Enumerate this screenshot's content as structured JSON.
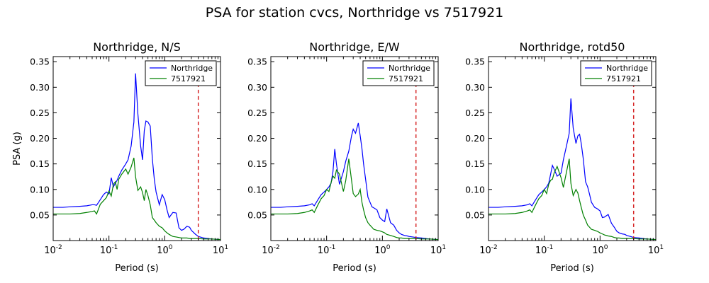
{
  "figure": {
    "suptitle": "PSA for station cvcs, Northridge vs 7517921"
  },
  "chart_data": [
    {
      "type": "line",
      "title": "Northridge, N/S",
      "xlabel": "Period (s)",
      "ylabel": "PSA (g)",
      "xscale": "log",
      "xlim": [
        0.01,
        10
      ],
      "ylim": [
        0.0,
        0.36
      ],
      "xticks": [
        "10^-2",
        "10^-1",
        "10^0",
        "10^1"
      ],
      "yticks": [
        "0.05",
        "0.10",
        "0.15",
        "0.20",
        "0.25",
        "0.30",
        "0.35"
      ],
      "legend_position": "top-right",
      "vline": {
        "x": 4.0,
        "color": "#d62728",
        "style": "dashed"
      },
      "series": [
        {
          "name": "Northridge",
          "color": "#0000ff",
          "x": [
            0.01,
            0.015,
            0.02,
            0.03,
            0.04,
            0.05,
            0.055,
            0.06,
            0.07,
            0.08,
            0.09,
            0.1,
            0.11,
            0.12,
            0.13,
            0.14,
            0.15,
            0.17,
            0.2,
            0.22,
            0.25,
            0.28,
            0.3,
            0.33,
            0.37,
            0.4,
            0.43,
            0.46,
            0.5,
            0.55,
            0.6,
            0.65,
            0.7,
            0.8,
            0.9,
            1.0,
            1.1,
            1.2,
            1.4,
            1.6,
            1.8,
            2.0,
            2.2,
            2.5,
            2.8,
            3.0,
            3.5,
            4.0,
            5.0,
            7.0,
            10.0
          ],
          "y": [
            0.065,
            0.065,
            0.066,
            0.067,
            0.068,
            0.07,
            0.07,
            0.069,
            0.08,
            0.09,
            0.095,
            0.091,
            0.123,
            0.105,
            0.112,
            0.118,
            0.126,
            0.138,
            0.15,
            0.158,
            0.185,
            0.232,
            0.327,
            0.248,
            0.185,
            0.158,
            0.215,
            0.234,
            0.232,
            0.224,
            0.16,
            0.12,
            0.095,
            0.07,
            0.09,
            0.08,
            0.06,
            0.045,
            0.055,
            0.054,
            0.025,
            0.02,
            0.022,
            0.028,
            0.026,
            0.02,
            0.013,
            0.008,
            0.005,
            0.003,
            0.002
          ]
        },
        {
          "name": "7517921",
          "color": "#008000",
          "x": [
            0.01,
            0.015,
            0.02,
            0.03,
            0.04,
            0.05,
            0.055,
            0.06,
            0.07,
            0.08,
            0.09,
            0.1,
            0.11,
            0.12,
            0.13,
            0.14,
            0.15,
            0.17,
            0.2,
            0.22,
            0.25,
            0.28,
            0.3,
            0.33,
            0.37,
            0.4,
            0.43,
            0.46,
            0.5,
            0.55,
            0.6,
            0.65,
            0.7,
            0.8,
            0.9,
            1.0,
            1.1,
            1.2,
            1.4,
            1.6,
            1.8,
            2.0,
            2.2,
            2.5,
            2.8,
            3.0,
            3.5,
            4.0,
            5.0,
            7.0,
            10.0
          ],
          "y": [
            0.052,
            0.052,
            0.052,
            0.053,
            0.055,
            0.057,
            0.058,
            0.052,
            0.071,
            0.078,
            0.084,
            0.097,
            0.087,
            0.11,
            0.115,
            0.1,
            0.12,
            0.13,
            0.14,
            0.13,
            0.144,
            0.162,
            0.125,
            0.098,
            0.105,
            0.094,
            0.078,
            0.1,
            0.088,
            0.07,
            0.045,
            0.04,
            0.035,
            0.028,
            0.025,
            0.019,
            0.015,
            0.012,
            0.008,
            0.007,
            0.006,
            0.005,
            0.005,
            0.005,
            0.004,
            0.004,
            0.004,
            0.004,
            0.003,
            0.003,
            0.002
          ]
        }
      ]
    },
    {
      "type": "line",
      "title": "Northridge, E/W",
      "xlabel": "Period (s)",
      "ylabel": "",
      "xscale": "log",
      "xlim": [
        0.01,
        10
      ],
      "ylim": [
        0.0,
        0.36
      ],
      "xticks": [
        "10^-2",
        "10^-1",
        "10^0",
        "10^1"
      ],
      "yticks": [
        "0.05",
        "0.10",
        "0.15",
        "0.20",
        "0.25",
        "0.30",
        "0.35"
      ],
      "legend_position": "top-right",
      "vline": {
        "x": 4.0,
        "color": "#d62728",
        "style": "dashed"
      },
      "series": [
        {
          "name": "Northridge",
          "color": "#0000ff",
          "x": [
            0.01,
            0.015,
            0.02,
            0.03,
            0.04,
            0.05,
            0.055,
            0.06,
            0.07,
            0.08,
            0.09,
            0.1,
            0.11,
            0.12,
            0.13,
            0.14,
            0.15,
            0.17,
            0.2,
            0.22,
            0.25,
            0.28,
            0.3,
            0.33,
            0.37,
            0.4,
            0.43,
            0.46,
            0.5,
            0.55,
            0.6,
            0.65,
            0.7,
            0.8,
            0.9,
            1.0,
            1.1,
            1.2,
            1.4,
            1.6,
            1.8,
            2.0,
            2.2,
            2.5,
            2.8,
            3.0,
            3.5,
            4.0,
            5.0,
            7.0,
            10.0
          ],
          "y": [
            0.065,
            0.065,
            0.066,
            0.067,
            0.068,
            0.07,
            0.072,
            0.068,
            0.08,
            0.09,
            0.095,
            0.1,
            0.105,
            0.112,
            0.135,
            0.179,
            0.15,
            0.11,
            0.135,
            0.155,
            0.175,
            0.205,
            0.218,
            0.21,
            0.23,
            0.205,
            0.18,
            0.15,
            0.12,
            0.085,
            0.075,
            0.066,
            0.064,
            0.06,
            0.045,
            0.04,
            0.037,
            0.062,
            0.035,
            0.03,
            0.02,
            0.015,
            0.012,
            0.01,
            0.009,
            0.008,
            0.007,
            0.006,
            0.005,
            0.003,
            0.002
          ]
        },
        {
          "name": "7517921",
          "color": "#008000",
          "x": [
            0.01,
            0.015,
            0.02,
            0.03,
            0.04,
            0.05,
            0.055,
            0.06,
            0.07,
            0.08,
            0.09,
            0.1,
            0.11,
            0.12,
            0.13,
            0.14,
            0.15,
            0.17,
            0.2,
            0.22,
            0.25,
            0.28,
            0.3,
            0.33,
            0.37,
            0.4,
            0.43,
            0.46,
            0.5,
            0.55,
            0.6,
            0.65,
            0.7,
            0.8,
            0.9,
            1.0,
            1.1,
            1.2,
            1.4,
            1.6,
            1.8,
            2.0,
            2.2,
            2.5,
            2.8,
            3.0,
            3.5,
            4.0,
            5.0,
            7.0,
            10.0
          ],
          "y": [
            0.052,
            0.052,
            0.052,
            0.053,
            0.055,
            0.058,
            0.06,
            0.055,
            0.07,
            0.082,
            0.088,
            0.1,
            0.096,
            0.113,
            0.126,
            0.122,
            0.138,
            0.13,
            0.096,
            0.117,
            0.16,
            0.118,
            0.092,
            0.086,
            0.091,
            0.1,
            0.075,
            0.06,
            0.045,
            0.035,
            0.03,
            0.026,
            0.022,
            0.02,
            0.019,
            0.017,
            0.015,
            0.012,
            0.01,
            0.008,
            0.006,
            0.005,
            0.005,
            0.004,
            0.004,
            0.004,
            0.004,
            0.004,
            0.003,
            0.003,
            0.002
          ]
        }
      ]
    },
    {
      "type": "line",
      "title": "Northridge, rotd50",
      "xlabel": "Period (s)",
      "ylabel": "",
      "xscale": "log",
      "xlim": [
        0.01,
        10
      ],
      "ylim": [
        0.0,
        0.36
      ],
      "xticks": [
        "10^-2",
        "10^-1",
        "10^0",
        "10^1"
      ],
      "yticks": [
        "0.05",
        "0.10",
        "0.15",
        "0.20",
        "0.25",
        "0.30",
        "0.35"
      ],
      "legend_position": "top-right",
      "vline": {
        "x": 4.0,
        "color": "#d62728",
        "style": "dashed"
      },
      "series": [
        {
          "name": "Northridge",
          "color": "#0000ff",
          "x": [
            0.01,
            0.015,
            0.02,
            0.03,
            0.04,
            0.05,
            0.055,
            0.06,
            0.07,
            0.08,
            0.09,
            0.1,
            0.11,
            0.12,
            0.13,
            0.14,
            0.15,
            0.17,
            0.2,
            0.22,
            0.25,
            0.28,
            0.3,
            0.33,
            0.37,
            0.4,
            0.43,
            0.46,
            0.5,
            0.55,
            0.6,
            0.65,
            0.7,
            0.8,
            0.9,
            1.0,
            1.1,
            1.2,
            1.4,
            1.6,
            1.8,
            2.0,
            2.2,
            2.5,
            2.8,
            3.0,
            3.5,
            4.0,
            5.0,
            7.0,
            10.0
          ],
          "y": [
            0.065,
            0.065,
            0.066,
            0.067,
            0.068,
            0.07,
            0.072,
            0.068,
            0.08,
            0.09,
            0.095,
            0.1,
            0.105,
            0.112,
            0.13,
            0.147,
            0.14,
            0.126,
            0.132,
            0.158,
            0.185,
            0.21,
            0.278,
            0.22,
            0.19,
            0.205,
            0.208,
            0.19,
            0.16,
            0.115,
            0.105,
            0.09,
            0.075,
            0.065,
            0.062,
            0.058,
            0.045,
            0.046,
            0.051,
            0.034,
            0.026,
            0.018,
            0.015,
            0.013,
            0.012,
            0.01,
            0.008,
            0.006,
            0.005,
            0.003,
            0.002
          ]
        },
        {
          "name": "7517921",
          "color": "#008000",
          "x": [
            0.01,
            0.015,
            0.02,
            0.03,
            0.04,
            0.05,
            0.055,
            0.06,
            0.07,
            0.08,
            0.09,
            0.1,
            0.11,
            0.12,
            0.13,
            0.14,
            0.15,
            0.17,
            0.2,
            0.22,
            0.25,
            0.28,
            0.3,
            0.33,
            0.37,
            0.4,
            0.43,
            0.46,
            0.5,
            0.55,
            0.6,
            0.65,
            0.7,
            0.8,
            0.9,
            1.0,
            1.1,
            1.2,
            1.4,
            1.6,
            1.8,
            2.0,
            2.2,
            2.5,
            2.8,
            3.0,
            3.5,
            4.0,
            5.0,
            7.0,
            10.0
          ],
          "y": [
            0.052,
            0.052,
            0.052,
            0.053,
            0.055,
            0.058,
            0.06,
            0.055,
            0.07,
            0.082,
            0.088,
            0.1,
            0.092,
            0.11,
            0.118,
            0.12,
            0.132,
            0.145,
            0.123,
            0.104,
            0.134,
            0.16,
            0.112,
            0.088,
            0.1,
            0.093,
            0.078,
            0.065,
            0.05,
            0.04,
            0.03,
            0.026,
            0.022,
            0.02,
            0.018,
            0.015,
            0.013,
            0.011,
            0.009,
            0.008,
            0.006,
            0.005,
            0.005,
            0.004,
            0.004,
            0.004,
            0.004,
            0.004,
            0.003,
            0.003,
            0.002
          ]
        }
      ]
    }
  ]
}
